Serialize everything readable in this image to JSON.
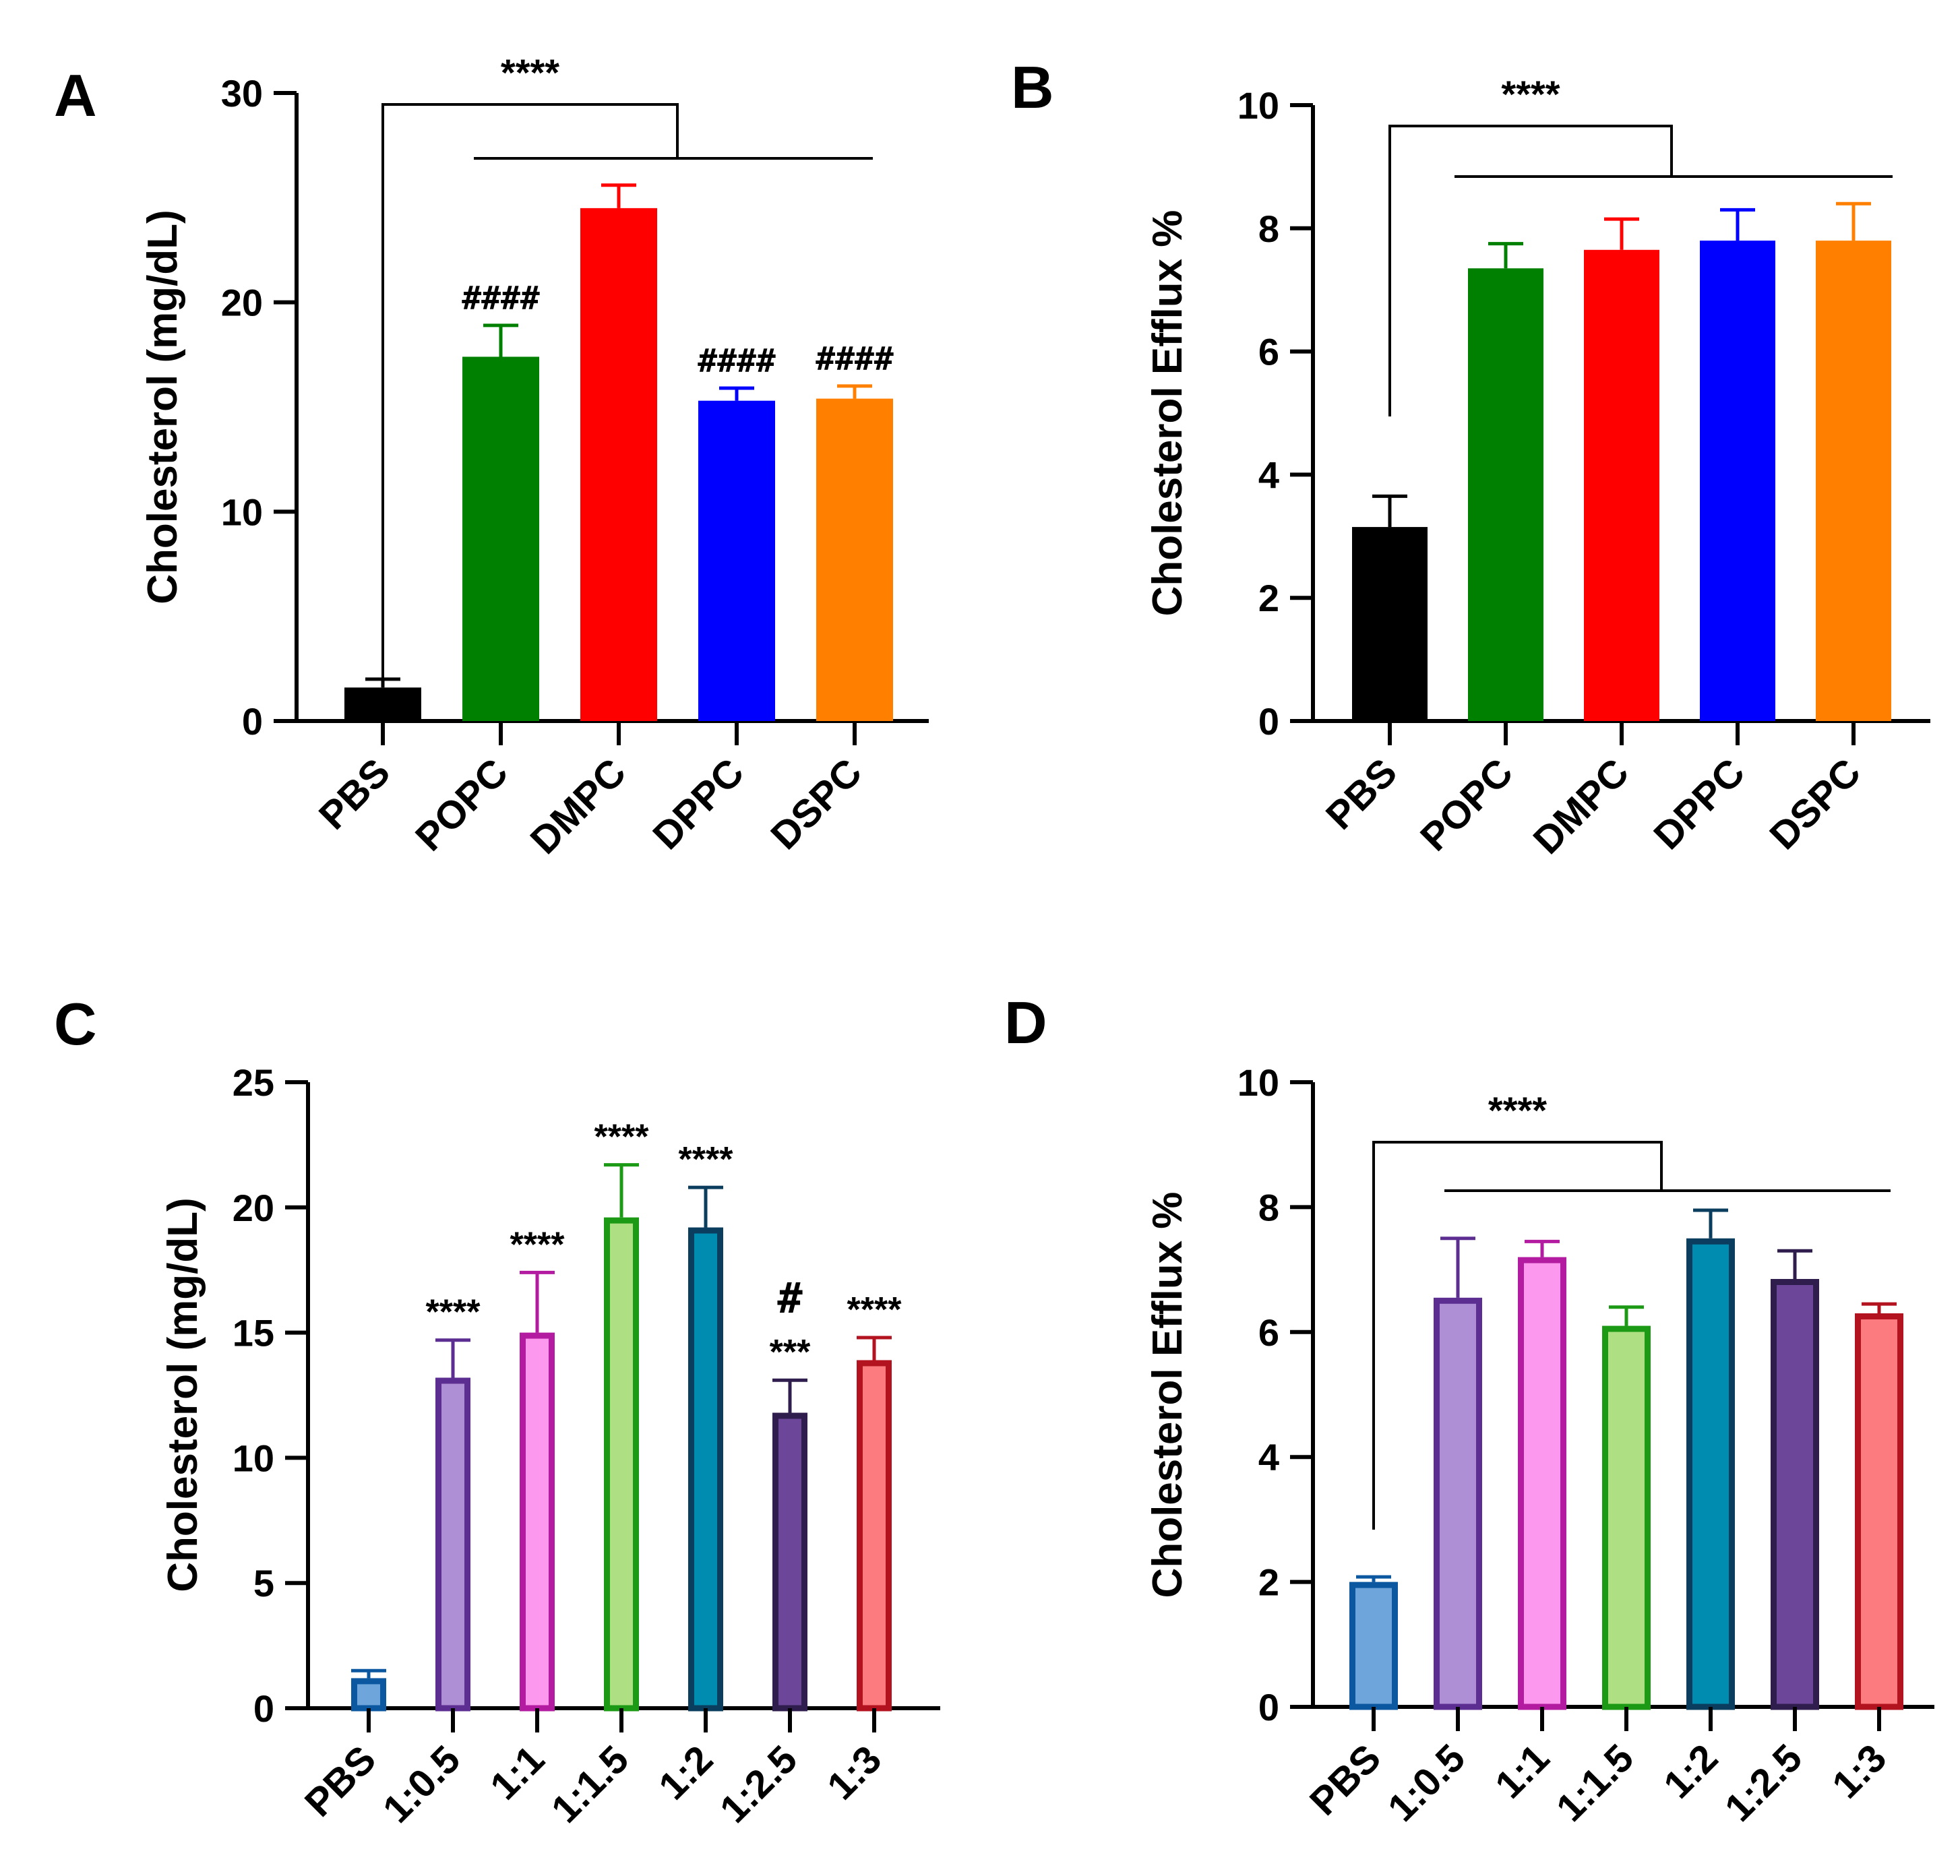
{
  "chart_data": [
    {
      "panel": "A",
      "type": "bar",
      "ylabel": "Cholesterol (mg/dL)",
      "ylim": [
        0,
        30
      ],
      "yticks": [
        0,
        10,
        20,
        30
      ],
      "categories": [
        "PBS",
        "POPC",
        "DMPC",
        "DPPC",
        "DSPC"
      ],
      "values": [
        1.6,
        17.4,
        24.5,
        15.3,
        15.4
      ],
      "errors": [
        0.4,
        1.5,
        1.1,
        0.6,
        0.6
      ],
      "fill_colors": [
        "#000000",
        "#008000",
        "#ff0000",
        "#0000ff",
        "#ff8000"
      ],
      "stroke_colors": [
        "#000000",
        "#008000",
        "#ff0000",
        "#0000ff",
        "#ff8000"
      ],
      "bar_annotations": [
        "",
        "####",
        "",
        "####",
        "####"
      ],
      "bracket": {
        "label": "****",
        "from": "PBS",
        "to_range": [
          "POPC",
          "DSPC"
        ]
      }
    },
    {
      "panel": "B",
      "type": "bar",
      "ylabel": "Cholesterol Efflux %",
      "ylim": [
        0,
        10
      ],
      "yticks": [
        0,
        2,
        4,
        6,
        8,
        10
      ],
      "categories": [
        "PBS",
        "POPC",
        "DMPC",
        "DPPC",
        "DSPC"
      ],
      "values": [
        3.15,
        7.35,
        7.65,
        7.8,
        7.8
      ],
      "errors": [
        0.5,
        0.4,
        0.5,
        0.5,
        0.6
      ],
      "fill_colors": [
        "#000000",
        "#008000",
        "#ff0000",
        "#0000ff",
        "#ff8000"
      ],
      "stroke_colors": [
        "#000000",
        "#008000",
        "#ff0000",
        "#0000ff",
        "#ff8000"
      ],
      "bar_annotations": [
        "",
        "",
        "",
        "",
        ""
      ],
      "bracket": {
        "label": "****",
        "from": "PBS",
        "to_range": [
          "POPC",
          "DSPC"
        ]
      }
    },
    {
      "panel": "C",
      "type": "bar",
      "ylabel": "Cholesterol (mg/dL)",
      "ylim": [
        0,
        25
      ],
      "yticks": [
        0,
        5,
        10,
        15,
        20,
        25
      ],
      "categories": [
        "PBS",
        "1:0.5",
        "1:1",
        "1:1.5",
        "1:2",
        "1:2.5",
        "1:3"
      ],
      "values": [
        1.2,
        13.2,
        15.0,
        19.6,
        19.2,
        11.8,
        13.9
      ],
      "errors": [
        0.3,
        1.5,
        2.4,
        2.1,
        1.6,
        1.3,
        0.9
      ],
      "fill_colors": [
        "#6ea6dc",
        "#ae8fd6",
        "#fc99ee",
        "#aee083",
        "#008bb0",
        "#6c4699",
        "#fb7b7e"
      ],
      "stroke_colors": [
        "#0b57a0",
        "#5c2e91",
        "#b31ca0",
        "#1c9a16",
        "#0b3e5e",
        "#2f1d4d",
        "#b3121f"
      ],
      "bar_annotations": [
        "",
        "****",
        "****",
        "****",
        "****",
        "***",
        "****"
      ],
      "bar_annotations_top": [
        "",
        "",
        "",
        "",
        "",
        "#",
        ""
      ]
    },
    {
      "panel": "D",
      "type": "bar",
      "ylabel": "Cholesterol Efflux %",
      "ylim": [
        0,
        10
      ],
      "yticks": [
        0,
        2,
        4,
        6,
        8,
        10
      ],
      "categories": [
        "PBS",
        "1:0.5",
        "1:1",
        "1:1.5",
        "1:2",
        "1:2.5",
        "1:3"
      ],
      "values": [
        2.0,
        6.55,
        7.2,
        6.1,
        7.5,
        6.85,
        6.3
      ],
      "errors": [
        0.08,
        0.95,
        0.25,
        0.3,
        0.45,
        0.45,
        0.15
      ],
      "fill_colors": [
        "#6ea6dc",
        "#ae8fd6",
        "#fc99ee",
        "#aee083",
        "#008bb0",
        "#6c4699",
        "#fb7b7e"
      ],
      "stroke_colors": [
        "#0b57a0",
        "#5c2e91",
        "#b31ca0",
        "#1c9a16",
        "#0b3e5e",
        "#2f1d4d",
        "#b3121f"
      ],
      "bar_annotations": [
        "",
        "",
        "",
        "",
        "",
        "",
        ""
      ],
      "bracket": {
        "label": "****",
        "from": "PBS",
        "to_range": [
          "1:0.5",
          "1:3"
        ]
      }
    }
  ]
}
